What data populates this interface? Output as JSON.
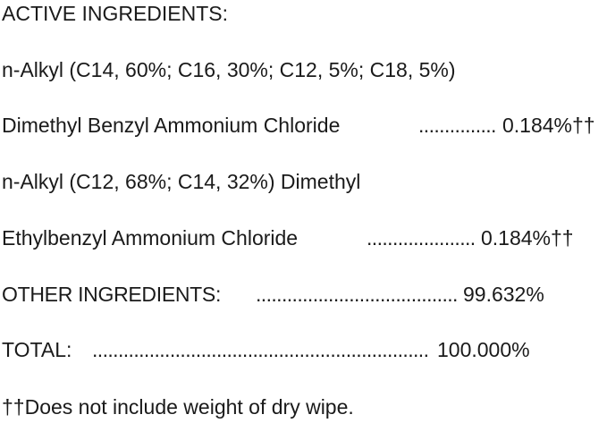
{
  "label": {
    "active_heading": "ACTIVE INGREDIENTS:",
    "ingredient1_line1": "n-Alkyl (C14, 60%; C16, 30%; C12, 5%; C18, 5%)",
    "ingredient1_line2": "Dimethyl Benzyl Ammonium Chloride",
    "ingredient1_leader": "...................................",
    "ingredient1_value": "0.184%††",
    "ingredient2_line1": "n-Alkyl (C12, 68%; C14, 32%) Dimethyl",
    "ingredient2_line2": "Ethylbenzyl Ammonium Chloride",
    "ingredient2_leader": "...................................",
    "ingredient2_value": "0.184%††",
    "other_label": "OTHER INGREDIENTS:",
    "other_leader": "..................................................",
    "other_value": "99.632%",
    "total_label": "TOTAL:",
    "total_leader": "...........................................................................",
    "total_value": "100.000%",
    "footnote": "††Does not include weight of dry wipe."
  }
}
